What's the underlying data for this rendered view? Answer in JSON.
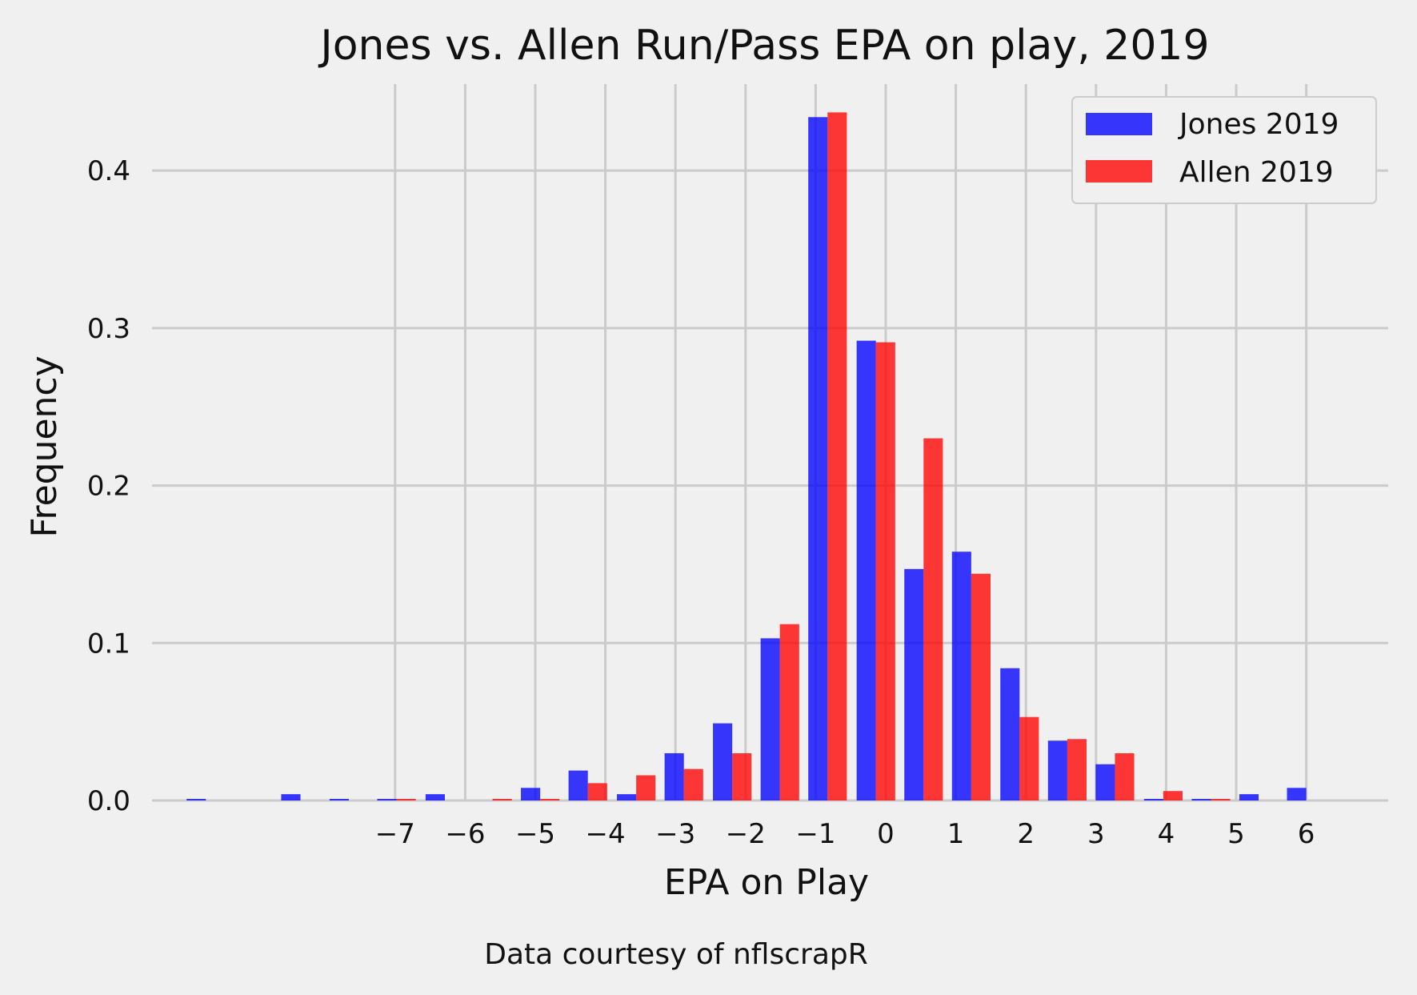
{
  "chart_data": {
    "type": "bar",
    "title": "Jones vs. Allen Run/Pass EPA on play, 2019",
    "xlabel": "EPA on Play",
    "ylabel": "Frequency",
    "caption": "Data courtesy of nflscrapR",
    "xlim": [
      -10.0,
      6.5
    ],
    "ylim": [
      0,
      0.455
    ],
    "xticks": [
      -7,
      -6,
      -5,
      -4,
      -3,
      -2,
      -1,
      0,
      1,
      2,
      3,
      4,
      5,
      6
    ],
    "xtick_labels": [
      "−7",
      "−6",
      "−5",
      "−4",
      "−3",
      "−2",
      "−1",
      "0",
      "1",
      "2",
      "3",
      "4",
      "5",
      "6"
    ],
    "yticks": [
      0.0,
      0.1,
      0.2,
      0.3,
      0.4
    ],
    "ytick_labels": [
      "0.0",
      "0.1",
      "0.2",
      "0.3",
      "0.4"
    ],
    "grid": true,
    "legend_position": "top-right",
    "series": [
      {
        "name": "Jones 2019",
        "color": "#0000ff",
        "x": [
          -9.7,
          -8.35,
          -7.66,
          -6.98,
          -6.29,
          -5.61,
          -4.93,
          -4.25,
          -3.56,
          -2.88,
          -2.19,
          -1.51,
          -0.83,
          -0.14,
          0.54,
          1.22,
          1.91,
          2.59,
          3.27,
          3.96,
          4.64,
          5.32,
          6.0
        ],
        "values": [
          0.001,
          0.004,
          0.001,
          0.001,
          0.004,
          0.0,
          0.008,
          0.019,
          0.004,
          0.03,
          0.049,
          0.103,
          0.434,
          0.292,
          0.147,
          0.158,
          0.084,
          0.038,
          0.023,
          0.001,
          0.001,
          0.004,
          0.008
        ]
      },
      {
        "name": "Allen 2019",
        "color": "#ff0000",
        "x": [
          -9.7,
          -8.35,
          -7.66,
          -6.98,
          -6.29,
          -5.61,
          -4.93,
          -4.25,
          -3.56,
          -2.88,
          -2.19,
          -1.51,
          -0.83,
          -0.14,
          0.54,
          1.22,
          1.91,
          2.59,
          3.27,
          3.96,
          4.64,
          5.32,
          6.0
        ],
        "values": [
          0.0,
          0.0,
          0.0,
          0.001,
          0.0,
          0.001,
          0.001,
          0.011,
          0.016,
          0.02,
          0.03,
          0.112,
          0.437,
          0.291,
          0.23,
          0.144,
          0.053,
          0.039,
          0.03,
          0.006,
          0.001,
          0.0,
          0.0
        ]
      }
    ]
  }
}
